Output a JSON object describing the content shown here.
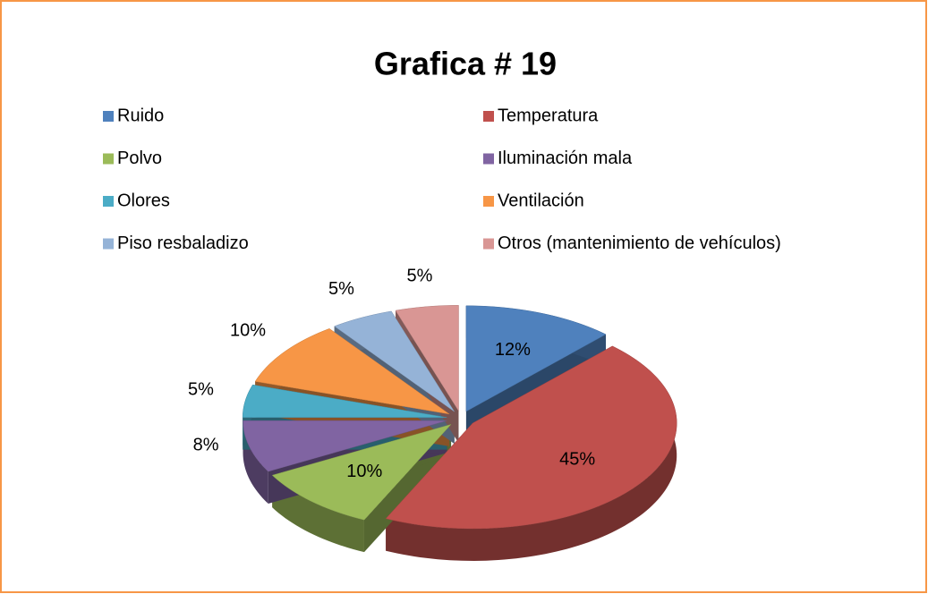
{
  "chart_data": {
    "type": "pie",
    "title": "Grafica # 19",
    "categories": [
      "Ruido",
      "Temperatura",
      "Polvo",
      "Iluminación mala",
      "Olores",
      "Ventilación",
      "Piso resbaladizo",
      "Otros (mantenimiento de vehículos)"
    ],
    "values": [
      12,
      45,
      10,
      8,
      5,
      10,
      5,
      5
    ],
    "value_labels": [
      "12%",
      "45%",
      "10%",
      "8%",
      "5%",
      "10%",
      "5%",
      "5%"
    ],
    "colors": [
      "#4f81bd",
      "#c0504d",
      "#9bbb59",
      "#8064a2",
      "#4bacc6",
      "#f79646",
      "#95b3d7",
      "#d99694"
    ],
    "legend": "top"
  }
}
